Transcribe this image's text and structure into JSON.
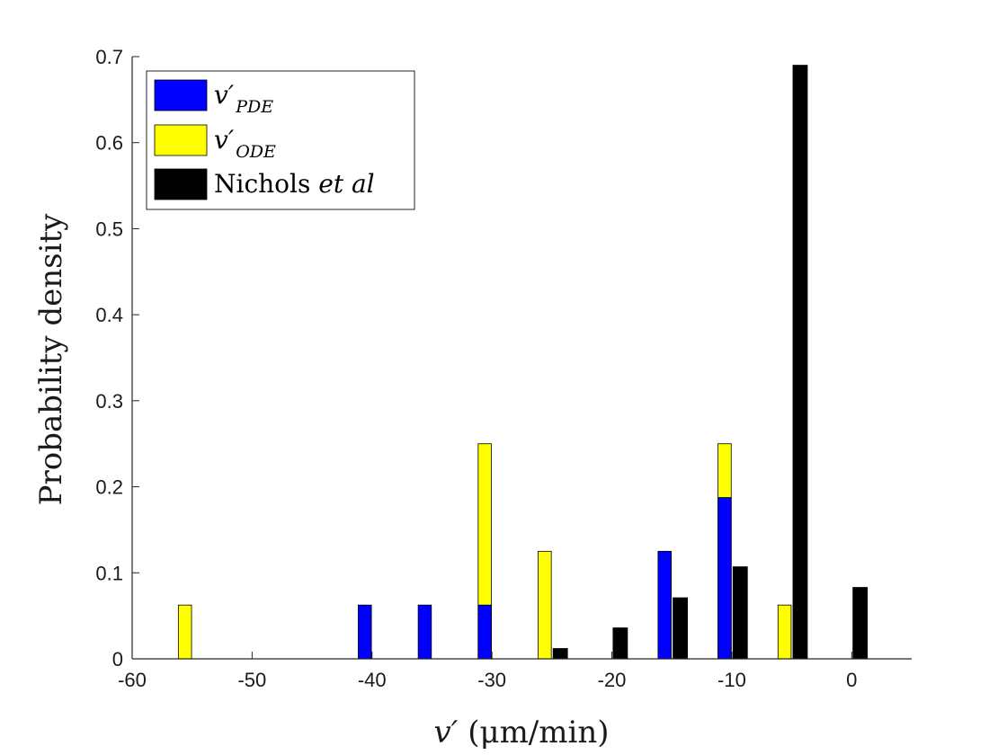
{
  "chart_data": {
    "type": "bar",
    "xlabel_main": "v′",
    "xlabel_units": "(μm/min)",
    "ylabel": "Probability density",
    "xlim": [
      -60,
      5
    ],
    "ylim": [
      0,
      0.7
    ],
    "xticks": [
      -60,
      -50,
      -40,
      -30,
      -20,
      -10,
      0
    ],
    "yticks": [
      0,
      0.1,
      0.2,
      0.3,
      0.4,
      0.5,
      0.6,
      0.7
    ],
    "legend_position": "top-left",
    "series": [
      {
        "name": "v′PDE",
        "legend_main": "v′",
        "legend_sub": "PDE",
        "color": "#0000ff",
        "width": 1.1,
        "points": [
          {
            "x": -40.6,
            "y": 0.0625
          },
          {
            "x": -35.6,
            "y": 0.0625
          },
          {
            "x": -30.6,
            "y": 0.0625
          },
          {
            "x": -15.6,
            "y": 0.125
          },
          {
            "x": -10.6,
            "y": 0.1875
          }
        ]
      },
      {
        "name": "v′ODE",
        "legend_main": "v′",
        "legend_sub": "ODE",
        "color": "#ffff00",
        "width": 1.1,
        "points": [
          {
            "x": -55.6,
            "y": 0.0625
          },
          {
            "x": -30.6,
            "y": 0.25
          },
          {
            "x": -25.6,
            "y": 0.125
          },
          {
            "x": -10.6,
            "y": 0.25
          },
          {
            "x": -5.6,
            "y": 0.0625
          }
        ]
      },
      {
        "name": "Nichols et al",
        "legend_main": "Nichols ",
        "legend_italic": "et al",
        "color": "#000000",
        "width": 1.2,
        "points": [
          {
            "x": -24.3,
            "y": 0.012
          },
          {
            "x": -19.3,
            "y": 0.036
          },
          {
            "x": -14.3,
            "y": 0.071
          },
          {
            "x": -9.3,
            "y": 0.107
          },
          {
            "x": -4.3,
            "y": 0.69
          },
          {
            "x": 0.7,
            "y": 0.083
          }
        ]
      }
    ],
    "draw_order": [
      "v′ODE",
      "v′PDE",
      "Nichols et al"
    ]
  }
}
